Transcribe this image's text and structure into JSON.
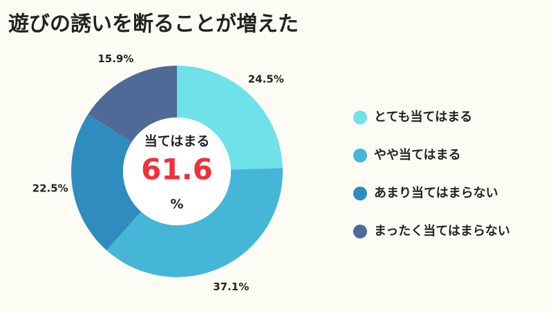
{
  "chart_data": {
    "type": "donut",
    "title": "遊びの誘いを断ることが増えた",
    "categories": [
      "とても当てはまる",
      "やや当てはまる",
      "あまり当てはまらない",
      "まったく当てはまらない"
    ],
    "values": [
      24.5,
      37.1,
      22.5,
      15.9
    ],
    "value_labels": [
      "24.5%",
      "37.1%",
      "22.5%",
      "15.9%"
    ],
    "colors": [
      "#6ee2e8",
      "#45b6d8",
      "#2f8cbf",
      "#4f6a97"
    ],
    "center": {
      "label": "当てはまる",
      "value": 61.6,
      "unit": "%"
    }
  }
}
